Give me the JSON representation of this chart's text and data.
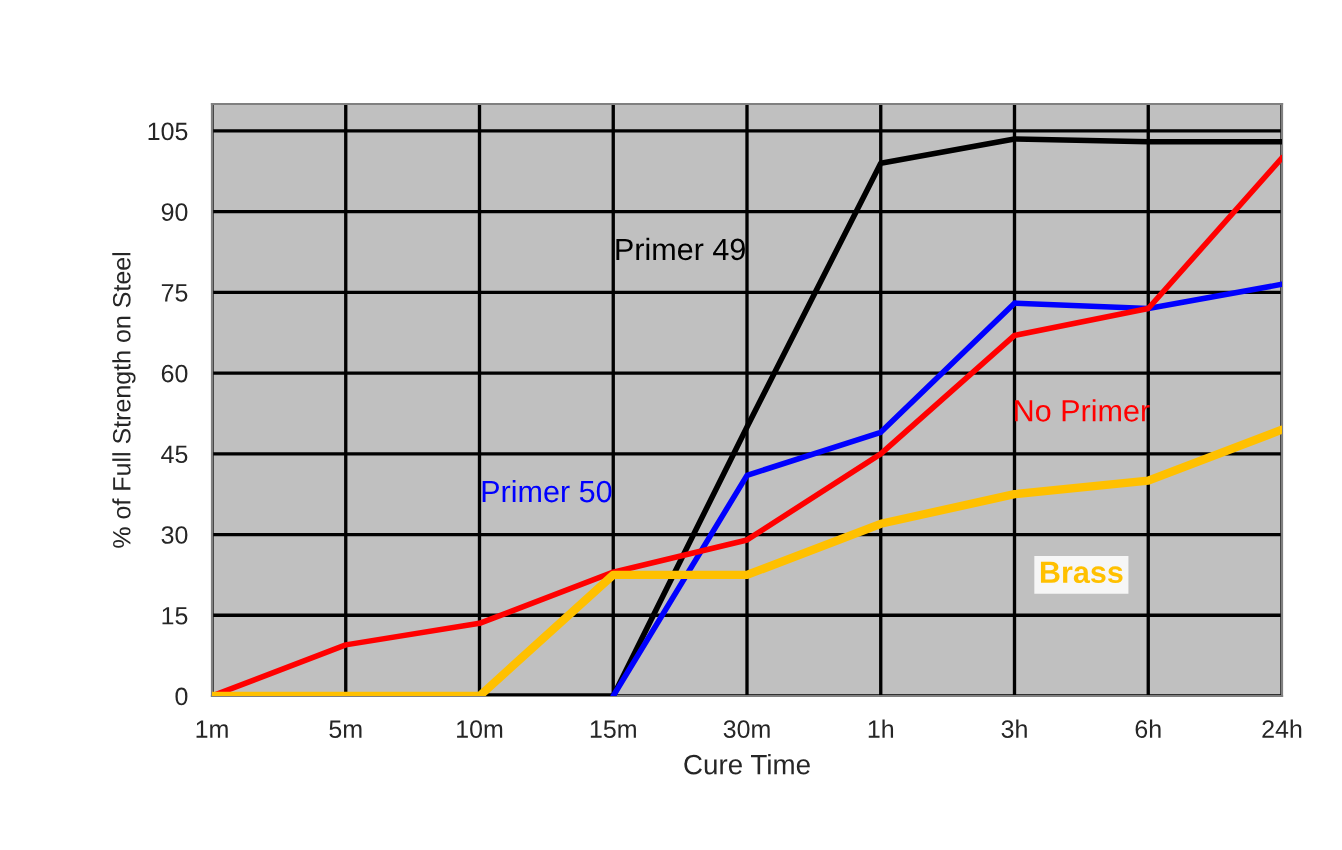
{
  "chart_data": {
    "type": "line",
    "xlabel": "Cure Time",
    "ylabel": "% of Full Strength on Steel",
    "categories": [
      "1m",
      "5m",
      "10m",
      "15m",
      "30m",
      "1h",
      "3h",
      "6h",
      "24h"
    ],
    "ylim": [
      0,
      110
    ],
    "yticks": [
      0,
      15,
      30,
      45,
      60,
      75,
      90,
      105
    ],
    "grid": true,
    "legend": false,
    "series": [
      {
        "name": "Primer 49",
        "color": "#000000",
        "values": [
          null,
          null,
          0,
          0,
          50,
          99,
          103.5,
          103,
          103
        ]
      },
      {
        "name": "Primer 50",
        "color": "#0000ff",
        "values": [
          null,
          null,
          null,
          0,
          41,
          49,
          73,
          72,
          76.5
        ]
      },
      {
        "name": "No Primer",
        "color": "#ff0000",
        "values": [
          0,
          9.5,
          13.5,
          23,
          29,
          45,
          67,
          72,
          100
        ]
      },
      {
        "name": "Brass",
        "color": "#ffc000",
        "values": [
          0,
          0,
          0,
          22.5,
          22.5,
          32,
          37.5,
          40,
          49.5
        ]
      }
    ]
  }
}
